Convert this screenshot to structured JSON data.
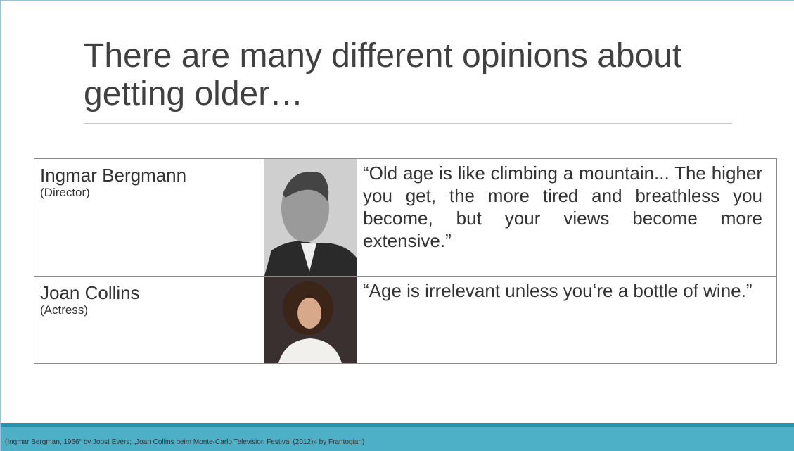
{
  "slide": {
    "title": "There are many different opinions about getting older…",
    "table": {
      "rows": [
        {
          "name": "Ingmar Bergmann",
          "role": "(Director)",
          "quote": "“Old age is like climbing a mountain... The higher you get, the more tired and breathless you become, but your views become more extensive.”"
        },
        {
          "name": "Joan Collins",
          "role": "(Actress)",
          "quote": "“Age is irrelevant unless you‘re a bottle of wine.”"
        }
      ]
    },
    "footer": "(Ingmar Bergman, 1966“ by Joost Evers; „Joan Collins beim Monte-Carlo Television Festival (2012)» by Frantogian)"
  }
}
